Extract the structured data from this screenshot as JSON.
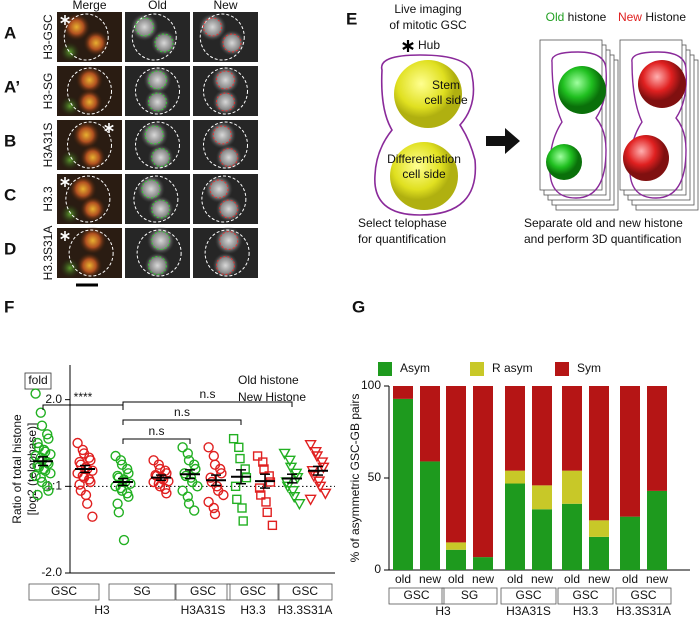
{
  "image_panels": {
    "columns": [
      "Merge",
      "Old",
      "New"
    ],
    "rows": [
      {
        "letter": "A",
        "name": "H3-GSC"
      },
      {
        "letter": "A’",
        "name": "H3-SG"
      },
      {
        "letter": "B",
        "name": "H3A31S"
      },
      {
        "letter": "C",
        "name": "H3.3"
      },
      {
        "letter": "D",
        "name": "H3.3S31A"
      }
    ]
  },
  "schematic": {
    "letter": "E",
    "title_lines": [
      "Live imaging",
      "of mitotic GSC"
    ],
    "hub": "Hub",
    "stem_side": [
      "Stem",
      "cell side"
    ],
    "diff_side": [
      "Differentiation",
      "cell side"
    ],
    "old_label": {
      "colored": "Old",
      "rest": " histone"
    },
    "new_label": {
      "colored": "New",
      "rest": " Histone"
    },
    "left_caption": [
      "Select telophase",
      "for quantification"
    ],
    "right_caption": [
      "Separate old and new histone",
      "and perform 3D quantification"
    ]
  },
  "chart_data": [
    {
      "type": "dotplot",
      "letter": "F",
      "unit_label": "fold",
      "ylabel": [
        "Ratio of total histone",
        "[log2 (telophase)]"
      ],
      "subgroups": [
        "GSC",
        "SG",
        "GSC",
        "GSC",
        "GSC"
      ],
      "groups": [
        "H3",
        "H3A31S",
        "H3.3",
        "H3.3S31A"
      ],
      "markers": [
        "circle",
        "circle",
        "circle",
        "square",
        "triangle-down"
      ],
      "ylim": [
        -1,
        1.4
      ],
      "yticks": [
        {
          "value": -1,
          "label": "-2.0"
        },
        {
          "value": 0,
          "label": "1:1"
        },
        {
          "value": 1,
          "label": "2.0"
        }
      ],
      "refline": 0,
      "series": [
        {
          "name": "Old histone",
          "color": "#22b022",
          "values": [
            [
              1.07,
              0.85,
              0.7,
              0.6,
              0.55,
              0.5,
              0.45,
              0.42,
              0.4,
              0.37,
              0.35,
              0.33,
              0.3,
              0.28,
              0.26,
              0.24,
              0.22,
              0.2,
              0.18,
              0.15,
              0.12,
              0.1,
              0.05,
              0.0,
              -0.05,
              -0.1
            ],
            [
              0.35,
              0.3,
              0.25,
              0.2,
              0.15,
              0.12,
              0.1,
              0.08,
              0.05,
              0.03,
              0.0,
              -0.02,
              -0.05,
              -0.08,
              -0.12,
              -0.2,
              -0.3,
              -0.62
            ],
            [
              0.45,
              0.38,
              0.3,
              0.25,
              0.2,
              0.15,
              0.12,
              0.1,
              0.05,
              0.0,
              -0.05,
              -0.12,
              -0.2,
              -0.28
            ],
            [
              0.55,
              0.45,
              0.32,
              0.2,
              0.1,
              0.0,
              -0.15,
              -0.25,
              -0.4
            ],
            [
              0.38,
              0.3,
              0.22,
              0.15,
              0.1,
              0.05,
              0.0,
              -0.05,
              -0.12,
              -0.2
            ]
          ],
          "means": [
            0.29,
            0.05,
            0.14,
            0.11,
            0.09
          ],
          "sems": [
            0.05,
            0.04,
            0.05,
            0.08,
            0.05
          ]
        },
        {
          "name": "New Histone",
          "color": "#e02020",
          "values": [
            [
              0.5,
              0.42,
              0.38,
              0.33,
              0.3,
              0.28,
              0.25,
              0.22,
              0.2,
              0.18,
              0.15,
              0.12,
              0.1,
              0.08,
              0.05,
              0.02,
              -0.05,
              -0.1,
              -0.2,
              -0.35
            ],
            [
              0.3,
              0.25,
              0.2,
              0.18,
              0.15,
              0.13,
              0.12,
              0.1,
              0.08,
              0.06,
              0.05,
              0.03,
              0.0,
              -0.03,
              -0.08
            ],
            [
              0.45,
              0.35,
              0.25,
              0.2,
              0.15,
              0.1,
              0.05,
              0.0,
              -0.05,
              -0.1,
              -0.18,
              -0.25,
              -0.32
            ],
            [
              0.35,
              0.28,
              0.2,
              0.12,
              0.05,
              -0.02,
              -0.1,
              -0.18,
              -0.3,
              -0.45
            ],
            [
              0.48,
              0.4,
              0.35,
              0.28,
              0.22,
              0.18,
              0.12,
              0.06,
              0.0,
              -0.08,
              -0.15
            ]
          ],
          "means": [
            0.2,
            0.1,
            0.07,
            0.06,
            0.18
          ],
          "sems": [
            0.04,
            0.03,
            0.06,
            0.08,
            0.05
          ]
        }
      ],
      "significance": [
        {
          "label": "****"
        },
        {
          "label": "n.s"
        },
        {
          "label": "n.s"
        },
        {
          "label": "n.s"
        }
      ]
    },
    {
      "type": "stacked-bar",
      "letter": "G",
      "ylabel": "% of asymmetric GSC-GB pairs",
      "categories": [
        "old",
        "new",
        "old",
        "new",
        "old",
        "new",
        "old",
        "new",
        "old",
        "new"
      ],
      "subgroups": [
        "GSC",
        "SG",
        "GSC",
        "GSC",
        "GSC"
      ],
      "groups": [
        "H3",
        "H3A31S",
        "H3.3",
        "H3.3S31A"
      ],
      "ylim": [
        0,
        100
      ],
      "yticks": [
        0,
        50,
        100
      ],
      "series": [
        {
          "name": "Asym",
          "color": "#1e9a1e",
          "values": [
            93,
            59,
            11,
            7,
            47,
            33,
            36,
            18,
            29,
            43
          ]
        },
        {
          "name": "R asym",
          "color": "#c8c828",
          "values": [
            0,
            0,
            4,
            0,
            7,
            13,
            18,
            9,
            0,
            0
          ]
        },
        {
          "name": "Sym",
          "color": "#b51515",
          "values": [
            7,
            41,
            85,
            93,
            46,
            54,
            46,
            73,
            71,
            57
          ]
        }
      ]
    }
  ]
}
